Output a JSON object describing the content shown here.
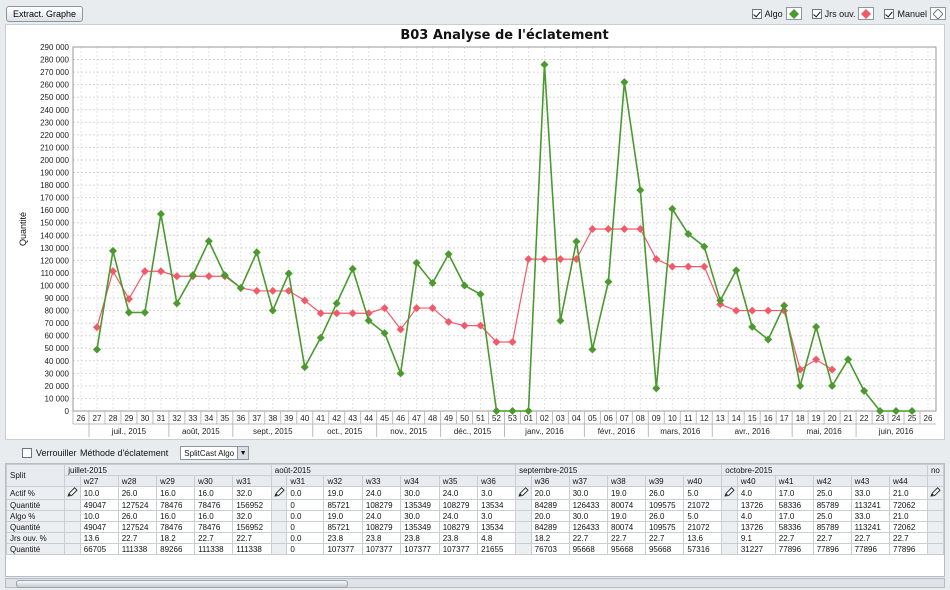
{
  "toolbar": {
    "extract_label": "Extract. Graphe"
  },
  "legend": [
    {
      "label": "Algo",
      "checked": true,
      "color": "#4a9a2e",
      "icon": "green-diamond-icon"
    },
    {
      "label": "Jrs ouv.",
      "checked": true,
      "color": "#f25a6a",
      "icon": "red-diamond-icon"
    },
    {
      "label": "Manuel",
      "checked": true,
      "color": "#ffffff",
      "icon": "white-diamond-icon"
    }
  ],
  "chart_data": {
    "type": "line",
    "title": "B03 Analyse de l'éclatement",
    "ylabel": "Quantité",
    "ylim": [
      0,
      290000
    ],
    "ytick_step": 10000,
    "categories": [
      "26",
      "27",
      "28",
      "29",
      "30",
      "31",
      "32",
      "33",
      "34",
      "35",
      "36",
      "37",
      "38",
      "39",
      "40",
      "41",
      "42",
      "43",
      "44",
      "45",
      "46",
      "47",
      "48",
      "49",
      "50",
      "51",
      "52",
      "53",
      "01",
      "02",
      "03",
      "04",
      "05",
      "06",
      "07",
      "08",
      "09",
      "10",
      "11",
      "12",
      "13",
      "14",
      "15",
      "16",
      "17",
      "18",
      "19",
      "20",
      "21",
      "22",
      "23",
      "24",
      "25",
      "26"
    ],
    "month_labels": [
      {
        "label": "juil., 2015",
        "start": 1,
        "end": 5
      },
      {
        "label": "août, 2015",
        "start": 6,
        "end": 9
      },
      {
        "label": "sept., 2015",
        "start": 10,
        "end": 14
      },
      {
        "label": "oct., 2015",
        "start": 15,
        "end": 18
      },
      {
        "label": "nov., 2015",
        "start": 19,
        "end": 22
      },
      {
        "label": "déc., 2015",
        "start": 23,
        "end": 26
      },
      {
        "label": "janv., 2016",
        "start": 27,
        "end": 31
      },
      {
        "label": "févr., 2016",
        "start": 32,
        "end": 35
      },
      {
        "label": "mars, 2016",
        "start": 36,
        "end": 39
      },
      {
        "label": "avr., 2016",
        "start": 40,
        "end": 44
      },
      {
        "label": "mai, 2016",
        "start": 45,
        "end": 48
      },
      {
        "label": "juin, 2016",
        "start": 49,
        "end": 53
      }
    ],
    "grid": true,
    "series": [
      {
        "name": "Algo",
        "color": "#4a9a2e",
        "values": [
          null,
          49047,
          127524,
          78476,
          78476,
          156952,
          85721,
          108279,
          135349,
          108279,
          98000,
          126433,
          80074,
          109575,
          35000,
          58336,
          85789,
          113241,
          72062,
          62000,
          30000,
          118000,
          102000,
          125000,
          100000,
          93000,
          0,
          0,
          0,
          276000,
          72000,
          135000,
          49000,
          103000,
          262000,
          176000,
          18000,
          161000,
          141000,
          131000,
          88000,
          112000,
          67000,
          57000,
          84000,
          20000,
          67000,
          20000,
          41000,
          16000,
          0,
          0,
          0,
          null
        ]
      },
      {
        "name": "Jrs ouv.",
        "color": "#f25a6a",
        "values": [
          null,
          66705,
          111338,
          89266,
          111338,
          111338,
          107377,
          107377,
          107377,
          107377,
          98000,
          95668,
          95668,
          95668,
          88000,
          77896,
          77896,
          77896,
          77896,
          82000,
          65000,
          82000,
          82000,
          71000,
          68000,
          68000,
          55000,
          55000,
          121000,
          121000,
          121000,
          121000,
          145000,
          145000,
          145000,
          145000,
          121000,
          115000,
          115000,
          115000,
          85000,
          80000,
          80000,
          80000,
          80000,
          33000,
          41000,
          33000,
          null,
          null,
          null,
          null,
          null,
          null
        ]
      }
    ]
  },
  "controls": {
    "lock_label": "Verrouiller",
    "lock_checked": false,
    "method_label": "Méthode d'éclatement",
    "method_value": "SplitCast Algo"
  },
  "table": {
    "corner": "Split",
    "row_labels": [
      "Actif %",
      "Quantité",
      "Algo %",
      "Quantité",
      "Jrs ouv. %",
      "Quantité"
    ],
    "months": [
      {
        "name": "juillet-2015",
        "weeks": [
          "w27",
          "w28",
          "w29",
          "w30",
          "w31"
        ],
        "rows": [
          [
            "10.0",
            "26.0",
            "16.0",
            "16.0",
            "32.0"
          ],
          [
            "49047",
            "127524",
            "78476",
            "78476",
            "156952"
          ],
          [
            "10.0",
            "26.0",
            "16.0",
            "16.0",
            "32.0"
          ],
          [
            "49047",
            "127524",
            "78476",
            "78476",
            "156952"
          ],
          [
            "13.6",
            "22.7",
            "18.2",
            "22.7",
            "22.7"
          ],
          [
            "66705",
            "111338",
            "89266",
            "111338",
            "111338"
          ]
        ]
      },
      {
        "name": "août-2015",
        "weeks": [
          "w31",
          "w32",
          "w33",
          "w34",
          "w35",
          "w36"
        ],
        "rows": [
          [
            "0.0",
            "19.0",
            "24.0",
            "30.0",
            "24.0",
            "3.0"
          ],
          [
            "0",
            "85721",
            "108279",
            "135349",
            "108279",
            "13534"
          ],
          [
            "0.0",
            "19.0",
            "24.0",
            "30.0",
            "24.0",
            "3.0"
          ],
          [
            "0",
            "85721",
            "108279",
            "135349",
            "108279",
            "13534"
          ],
          [
            "0.0",
            "23.8",
            "23.8",
            "23.8",
            "23.8",
            "4.8"
          ],
          [
            "0",
            "107377",
            "107377",
            "107377",
            "107377",
            "21655"
          ]
        ]
      },
      {
        "name": "septembre-2015",
        "weeks": [
          "w36",
          "w37",
          "w38",
          "w39",
          "w40"
        ],
        "rows": [
          [
            "20.0",
            "30.0",
            "19.0",
            "26.0",
            "5.0"
          ],
          [
            "84289",
            "126433",
            "80074",
            "109575",
            "21072"
          ],
          [
            "20.0",
            "30.0",
            "19.0",
            "26.0",
            "5.0"
          ],
          [
            "84289",
            "126433",
            "80074",
            "109575",
            "21072"
          ],
          [
            "18.2",
            "22.7",
            "22.7",
            "22.7",
            "13.6"
          ],
          [
            "76703",
            "95668",
            "95668",
            "95668",
            "57316"
          ]
        ]
      },
      {
        "name": "octobre-2015",
        "weeks": [
          "w40",
          "w41",
          "w42",
          "w43",
          "w44"
        ],
        "rows": [
          [
            "4.0",
            "17.0",
            "25.0",
            "33.0",
            "21.0"
          ],
          [
            "13726",
            "58336",
            "85789",
            "113241",
            "72062"
          ],
          [
            "4.0",
            "17.0",
            "25.0",
            "33.0",
            "21.0"
          ],
          [
            "13726",
            "58336",
            "85789",
            "113241",
            "72062"
          ],
          [
            "9.1",
            "22.7",
            "22.7",
            "22.7",
            "22.7"
          ],
          [
            "31227",
            "77896",
            "77896",
            "77896",
            "77896"
          ]
        ]
      },
      {
        "name": "no",
        "weeks": [],
        "rows": []
      }
    ]
  }
}
